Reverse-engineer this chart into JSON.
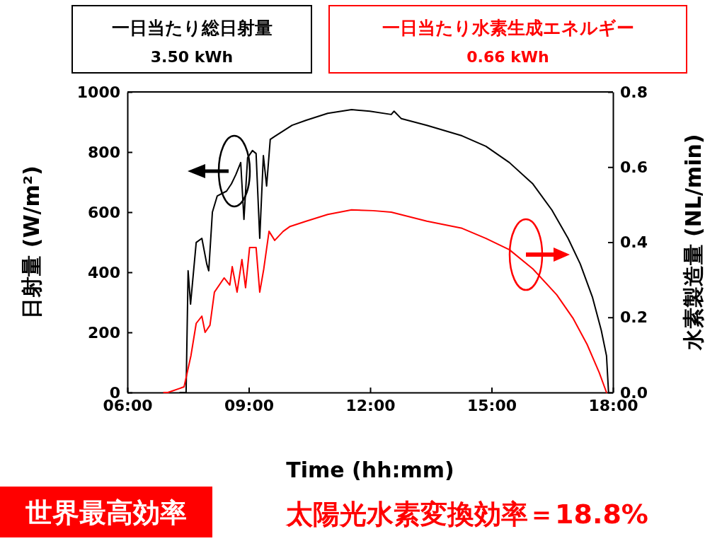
{
  "chart_data": {
    "type": "line",
    "xlabel": "Time (hh:mm)",
    "ylabel": "日射量 (W/m²)",
    "y2label": "水素製造量 (NL/min)",
    "annotations": [
      "一日当たり総日射量",
      "3.50 kWh",
      "一日当たり水素生成エネルギー",
      "0.66 kWh",
      "世界最高効率",
      "太陽光水素変換効率＝18.8%"
    ],
    "xlim": [
      6,
      18
    ],
    "xticks": [
      {
        "value": 6,
        "label": "06:00"
      },
      {
        "value": 9,
        "label": "09:00"
      },
      {
        "value": 12,
        "label": "12:00"
      },
      {
        "value": 15,
        "label": "15:00"
      },
      {
        "value": 18,
        "label": "18:00"
      }
    ],
    "ylim": [
      0,
      1000
    ],
    "yticks": [
      0,
      200,
      400,
      600,
      800,
      1000
    ],
    "y2lim": [
      0,
      0.8
    ],
    "y2ticks": [
      {
        "value": 0,
        "label": "0.0"
      },
      {
        "value": 0.2,
        "label": "0.2"
      },
      {
        "value": 0.4,
        "label": "0.4"
      },
      {
        "value": 0.6,
        "label": "0.6"
      },
      {
        "value": 0.8,
        "label": "0.8"
      }
    ],
    "line_style": "solid",
    "series": [
      {
        "color": "#000000",
        "x": [
          7.3,
          7.45,
          7.5,
          7.56,
          7.7,
          7.84,
          7.96,
          8.01,
          8.1,
          8.22,
          8.45,
          8.57,
          8.68,
          8.8,
          8.88,
          8.97,
          9.09,
          9.18,
          9.27,
          9.36,
          9.44,
          9.53,
          9.64,
          10.07,
          10.42,
          10.95,
          11.54,
          11.99,
          12.52,
          12.59,
          12.77,
          13.4,
          14.27,
          14.86,
          15.44,
          16.02,
          16.49,
          16.89,
          17.19,
          17.49,
          17.71,
          17.84,
          17.89
        ],
        "values": [
          0,
          0,
          405,
          294,
          499,
          513,
          428,
          405,
          600,
          654,
          670,
          694,
          725,
          765,
          576,
          781,
          805,
          795,
          513,
          788,
          687,
          842,
          852,
          889,
          906,
          929,
          941,
          936,
          925,
          936,
          911,
          889,
          854,
          819,
          765,
          694,
          607,
          513,
          428,
          318,
          207,
          122,
          0
        ]
      },
      {
        "color": "#ff0000",
        "axis": "y2",
        "x": [
          6.9,
          7.0,
          7.4,
          7.57,
          7.7,
          7.84,
          7.92,
          8.04,
          8.15,
          8.39,
          8.53,
          8.59,
          8.71,
          8.83,
          8.92,
          9.02,
          9.18,
          9.27,
          9.37,
          9.5,
          9.64,
          9.85,
          10.02,
          10.42,
          10.95,
          11.54,
          12.07,
          12.52,
          13.4,
          14.27,
          14.86,
          15.44,
          16.02,
          16.61,
          17.01,
          17.36,
          17.66,
          17.84
        ],
        "values": [
          0,
          0,
          0.015,
          0.098,
          0.184,
          0.203,
          0.16,
          0.179,
          0.267,
          0.305,
          0.286,
          0.335,
          0.267,
          0.354,
          0.279,
          0.386,
          0.386,
          0.267,
          0.329,
          0.429,
          0.405,
          0.429,
          0.442,
          0.456,
          0.474,
          0.486,
          0.484,
          0.48,
          0.456,
          0.437,
          0.41,
          0.38,
          0.329,
          0.26,
          0.198,
          0.128,
          0.053,
          0
        ]
      }
    ]
  }
}
